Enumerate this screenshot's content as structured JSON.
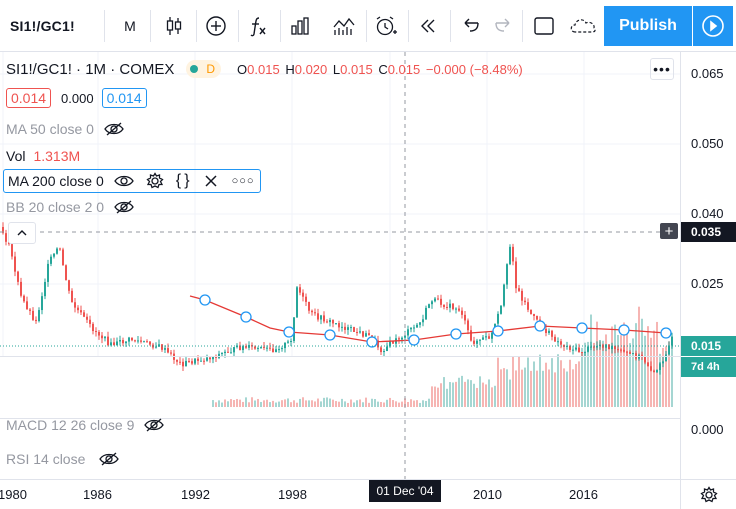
{
  "toolbar": {
    "symbol": "SI1!/GC1!",
    "interval": "M",
    "publish_label": "Publish"
  },
  "legend": {
    "title": "SI1!/GC1! · 1M · COMEX",
    "badge": "D",
    "open_label": "O",
    "open": "0.015",
    "high_label": "H",
    "high": "0.020",
    "low_label": "L",
    "low": "0.015",
    "close_label": "C",
    "close": "0.015",
    "change": "−0.000 (−8.48%)",
    "bid": "0.014",
    "spread": "0.000",
    "ask": "0.014"
  },
  "indicators": {
    "ma50": "MA 50 close 0",
    "vol_label": "Vol",
    "vol_value": "1.313M",
    "ma200": "MA 200 close 0",
    "bb": "BB 20 close 2 0",
    "macd": "MACD 12 26 close 9",
    "rsi": "RSI 14 close"
  },
  "price_axis": {
    "ticks": [
      "0.065",
      "0.050",
      "0.040",
      "0.025",
      "0.000"
    ],
    "crosshair_price": "0.035",
    "last_price": "0.015",
    "countdown": "7d 4h"
  },
  "time_axis": {
    "ticks": [
      "1980",
      "1986",
      "1992",
      "1998",
      "2004",
      "2010",
      "2016"
    ],
    "crosshair_date": "01 Dec '04"
  },
  "colors": {
    "up": "#26a69a",
    "down": "#ef5350",
    "accent": "#2196f3",
    "ma_line": "#e53935",
    "ma_marker": "#2196f3"
  }
}
